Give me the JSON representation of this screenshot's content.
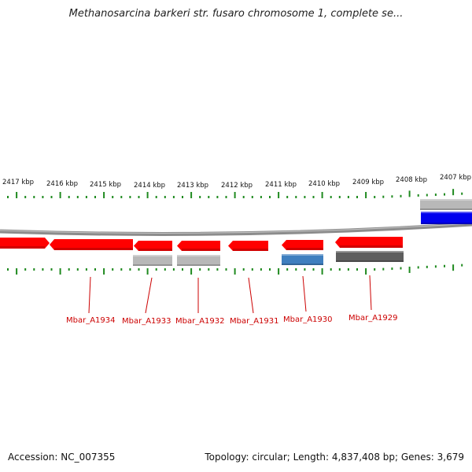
{
  "title": "Methanosarcina barkeri str. fusaro chromosome 1, complete se...",
  "footer": {
    "accession": "Accession: NC_007355",
    "summary": "Topology: circular; Length: 4,837,408 bp; Genes: 3,679"
  },
  "colors": {
    "tick": "#1f8a1f",
    "backbone": "#8c8c8c",
    "gene_red": "#ff0000",
    "gene_blue": "#0000ee",
    "feature_gray": "#b8b8b8",
    "feature_darkgray": "#5e5e5e",
    "feature_steelblue": "#3f7fbf",
    "label": "#cc0000"
  },
  "scale": {
    "kbp_labels": [
      "2417 kbp",
      "2416 kbp",
      "2415 kbp",
      "2414 kbp",
      "2413 kbp",
      "2412 kbp",
      "2411 kbp",
      "2410 kbp",
      "2409 kbp",
      "2408 kbp",
      "2407 kbp"
    ]
  },
  "gene_labels": [
    "Mbar_A1934",
    "Mbar_A1933",
    "Mbar_A1932",
    "Mbar_A1931",
    "Mbar_A1930",
    "Mbar_A1929"
  ]
}
